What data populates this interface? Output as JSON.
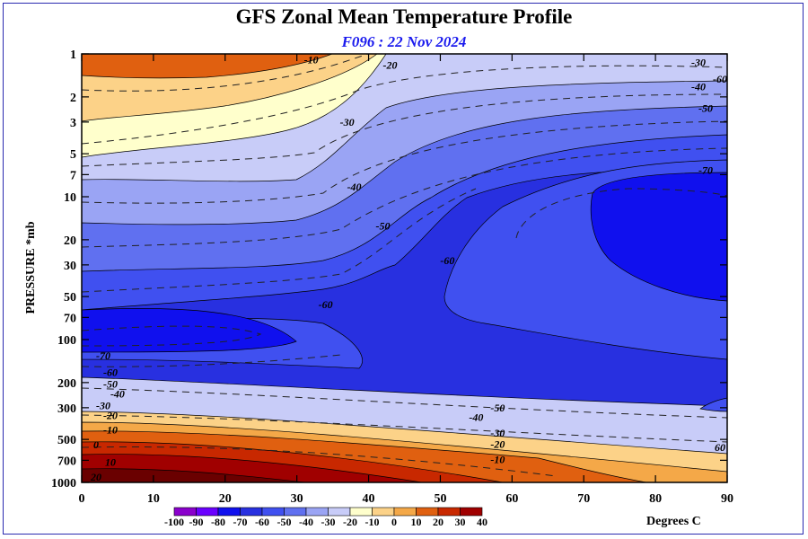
{
  "header": {
    "title": "GFS Zonal Mean Temperature Profile",
    "subtitle": "F096 : 22 Nov 2024"
  },
  "chart_data": {
    "type": "contour",
    "title": "GFS Zonal Mean Temperature Profile",
    "subtitle": "F096 : 22 Nov 2024",
    "xlabel": "",
    "ylabel": "PRESSURE *mb",
    "xlim": [
      0,
      90
    ],
    "ylim": [
      1000,
      1
    ],
    "yscale": "log",
    "x_ticks": [
      "0",
      "10",
      "20",
      "30",
      "40",
      "50",
      "60",
      "70",
      "80",
      "90"
    ],
    "y_ticks": [
      "1",
      "2",
      "3",
      "5",
      "7",
      "10",
      "20",
      "30",
      "50",
      "70",
      "100",
      "200",
      "300",
      "500",
      "700",
      "1000"
    ],
    "colorbar": {
      "label": "Degrees C",
      "levels": [
        -100,
        -90,
        -80,
        -70,
        -60,
        -50,
        -40,
        -30,
        -20,
        -10,
        0,
        10,
        20,
        30,
        40
      ],
      "colors": [
        "#8a00cc",
        "#6a00ff",
        "#1010ee",
        "#2830e0",
        "#4050f0",
        "#6070f0",
        "#9aa4f4",
        "#c8ccf8",
        "#ffffcc",
        "#fcd288",
        "#f4a848",
        "#e06010",
        "#c82800",
        "#a00000",
        "#6a0000",
        "#8a7a30"
      ]
    },
    "contour_labels": [
      {
        "x": 32,
        "p": 1.1,
        "text": "-10"
      },
      {
        "x": 43,
        "p": 1.2,
        "text": "-20"
      },
      {
        "x": 37,
        "p": 3.0,
        "text": "-30"
      },
      {
        "x": 38,
        "p": 8.5,
        "text": "-40"
      },
      {
        "x": 42,
        "p": 16,
        "text": "-50"
      },
      {
        "x": 51,
        "p": 28,
        "text": "-60"
      },
      {
        "x": 34,
        "p": 57,
        "text": "-60"
      },
      {
        "x": 86,
        "p": 1.15,
        "text": "-30"
      },
      {
        "x": 86,
        "p": 1.7,
        "text": "-40"
      },
      {
        "x": 87,
        "p": 2.4,
        "text": "-50"
      },
      {
        "x": 89,
        "p": 1.5,
        "text": "-60"
      },
      {
        "x": 87,
        "p": 6.5,
        "text": "-70"
      },
      {
        "x": 3,
        "p": 130,
        "text": "-70"
      },
      {
        "x": 4,
        "p": 170,
        "text": "-60"
      },
      {
        "x": 4,
        "p": 205,
        "text": "-50"
      },
      {
        "x": 5,
        "p": 240,
        "text": "-40"
      },
      {
        "x": 3,
        "p": 290,
        "text": "-30"
      },
      {
        "x": 4,
        "p": 340,
        "text": "-20"
      },
      {
        "x": 4,
        "p": 430,
        "text": "-10"
      },
      {
        "x": 2,
        "p": 545,
        "text": "0"
      },
      {
        "x": 4,
        "p": 720,
        "text": "10"
      },
      {
        "x": 2,
        "p": 920,
        "text": "20"
      },
      {
        "x": 58,
        "p": 300,
        "text": "-50"
      },
      {
        "x": 55,
        "p": 350,
        "text": "-40"
      },
      {
        "x": 58,
        "p": 450,
        "text": "-30"
      },
      {
        "x": 58,
        "p": 540,
        "text": "-20"
      },
      {
        "x": 58,
        "p": 690,
        "text": "-10"
      },
      {
        "x": 89,
        "p": 570,
        "text": "60"
      }
    ]
  }
}
